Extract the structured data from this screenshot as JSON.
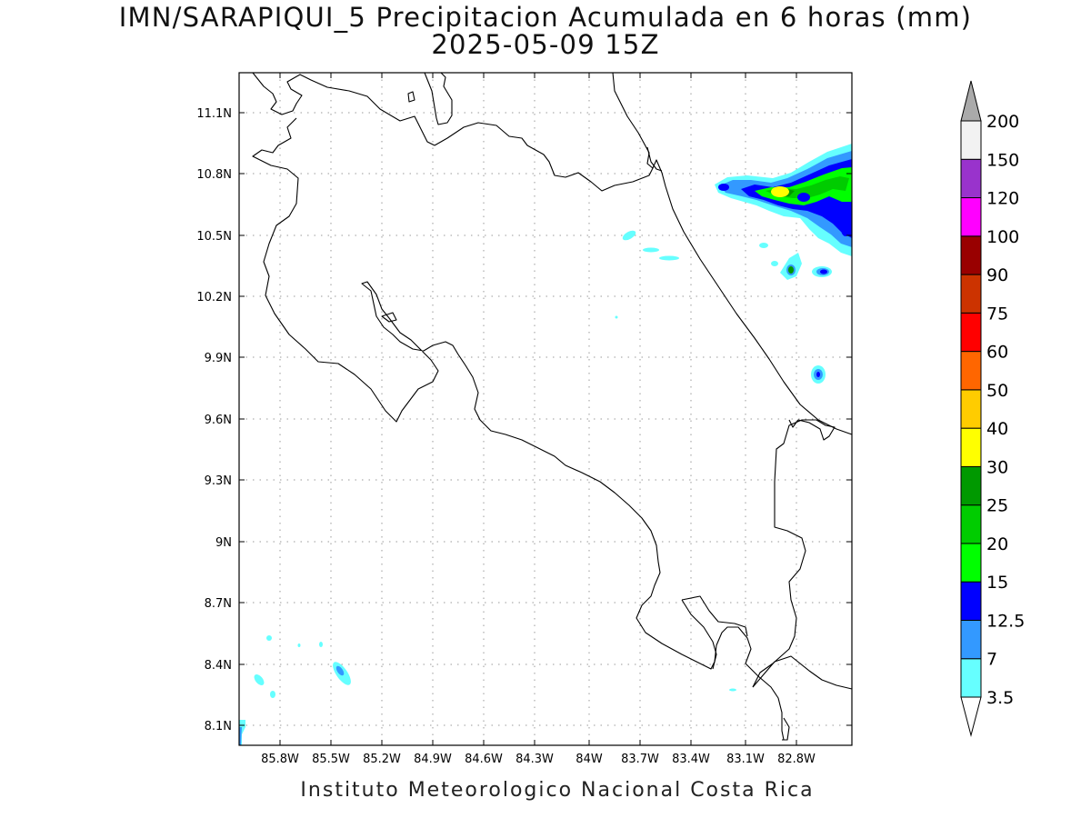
{
  "map": {
    "title_line1": "IMN/SARAPIQUI_5 Precipitacion Acumulada en 6 horas (mm)",
    "title_line2": "2025-05-09 15Z",
    "credit": "Instituto Meteorologico Nacional Costa Rica",
    "lat_labels": [
      "11.1N",
      "10.8N",
      "10.5N",
      "10.2N",
      "9.9N",
      "9.6N",
      "9.3N",
      "9N",
      "8.7N",
      "8.4N",
      "8.1N"
    ],
    "lon_labels": [
      "85.8W",
      "85.5W",
      "85.2W",
      "84.9W",
      "84.6W",
      "84.3W",
      "84W",
      "83.7W",
      "83.4W",
      "83.1W",
      "82.8W"
    ],
    "grid": "dotted",
    "coastline_color": "#000000"
  },
  "colorbar": {
    "labels": [
      "3.5",
      "7",
      "12.5",
      "15",
      "20",
      "25",
      "30",
      "40",
      "50",
      "60",
      "75",
      "90",
      "100",
      "120",
      "150",
      "200"
    ],
    "colors": [
      "#66ffff",
      "#3399ff",
      "#0000ff",
      "#00ff00",
      "#00cc00",
      "#009900",
      "#ffff00",
      "#ffcc00",
      "#ff6600",
      "#ff0000",
      "#cc3300",
      "#990000",
      "#ff00ff",
      "#9933cc",
      "#f2f2f2",
      "#aaaaaa"
    ],
    "under_color": "#ffffff",
    "over_color": "#aaaaaa"
  }
}
